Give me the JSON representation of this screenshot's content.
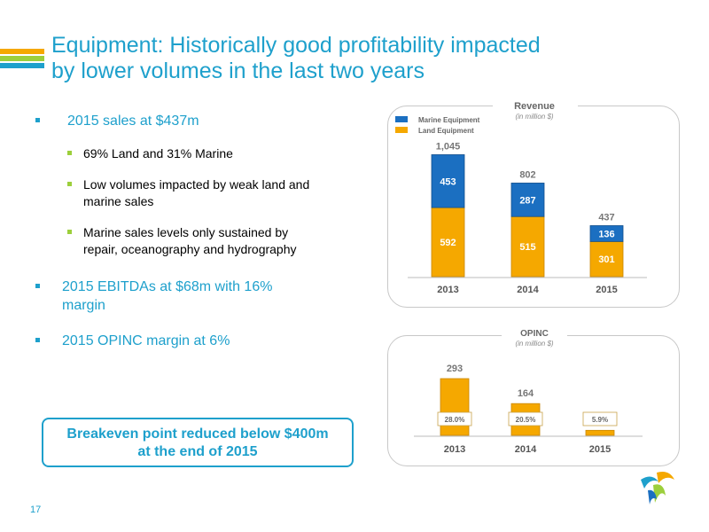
{
  "page": {
    "title_line1": "Equipment: Historically good profitability impacted",
    "title_line2": "by lower volumes in the last two years",
    "page_number": "17",
    "colors": {
      "accent": "#1ea0cc",
      "orange": "#f5a800",
      "blue": "#1b6fc1",
      "green": "#9ccf3c"
    }
  },
  "bullets": [
    {
      "text": "2015 sales at $437m",
      "sub": [
        "69% Land and 31% Marine",
        "Low volumes impacted by weak land and marine sales",
        "Marine sales levels only sustained by repair, oceanography and hydrography"
      ]
    },
    {
      "text": "2015 EBITDAs at $68m with 16% margin",
      "sub": []
    },
    {
      "text": "2015 OPINC margin at 6%",
      "sub": []
    }
  ],
  "callout": {
    "line1": "Breakeven point reduced below $400m",
    "line2": "at the end of 2015"
  },
  "chart_data": [
    {
      "type": "bar",
      "stacked": true,
      "title": "Revenue",
      "subtitle": "(in million $)",
      "categories": [
        "2013",
        "2014",
        "2015"
      ],
      "series": [
        {
          "name": "Land Equipment",
          "values": [
            592,
            515,
            301
          ],
          "color": "#f5a800"
        },
        {
          "name": "Marine Equipment",
          "values": [
            453,
            287,
            136
          ],
          "color": "#1b6fc1"
        }
      ],
      "totals": [
        "1,045",
        "802",
        "437"
      ],
      "legend": "top-left",
      "grid": false
    },
    {
      "type": "bar",
      "title": "OPINC",
      "subtitle": "(in million $)",
      "categories": [
        "2013",
        "2014",
        "2015"
      ],
      "values": [
        293,
        164,
        26
      ],
      "margins": [
        "28.0%",
        "20.5%",
        "5.9%"
      ],
      "color": "#f5a800",
      "grid": false
    }
  ]
}
